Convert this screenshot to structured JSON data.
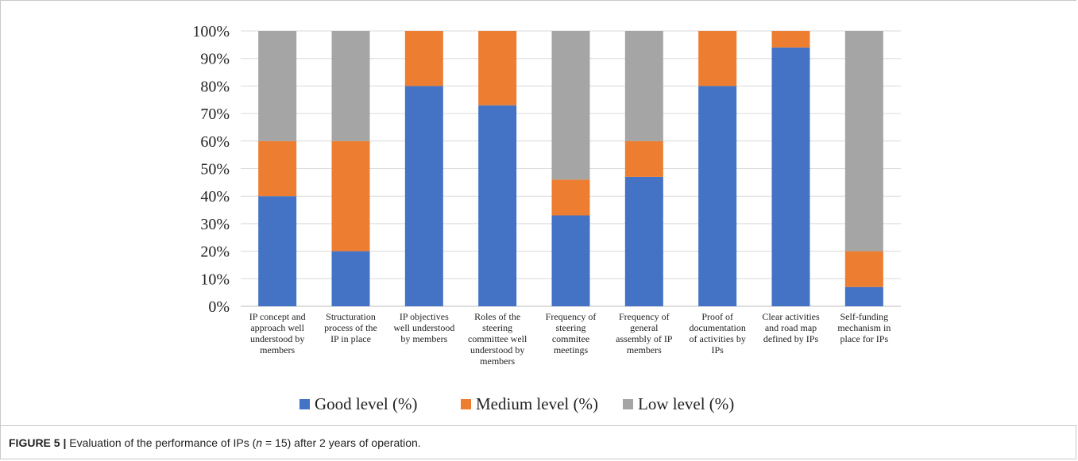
{
  "caption": {
    "label": "FIGURE 5 |",
    "text_before": " Evaluation of the performance of IPs (",
    "n_symbol": "n",
    "text_after": " = 15) after 2 years of operation."
  },
  "chart_data": {
    "type": "bar",
    "stacked": true,
    "title": "",
    "xlabel": "",
    "ylabel": "",
    "ylim": [
      0,
      100
    ],
    "yticks": [
      "0%",
      "10%",
      "20%",
      "30%",
      "40%",
      "50%",
      "60%",
      "70%",
      "80%",
      "90%",
      "100%"
    ],
    "grid": true,
    "legend_position": "bottom",
    "categories": [
      [
        "IP concept and",
        "approach well",
        "understood by",
        "members"
      ],
      [
        "Structuration",
        "process of the",
        "IP in place"
      ],
      [
        "IP objectives",
        "well understood",
        "by members"
      ],
      [
        "Roles of the",
        "steering",
        "committee well",
        "understood by",
        "members"
      ],
      [
        "Frequency of",
        "steering",
        "commitee",
        "meetings"
      ],
      [
        "Frequency of",
        "general",
        "assembly of IP",
        "members"
      ],
      [
        "Proof of",
        "documentation",
        "of activities by",
        "IPs"
      ],
      [
        "Clear activities",
        "and road map",
        "defined by IPs"
      ],
      [
        "Self-funding",
        "mechanism in",
        "place for IPs"
      ]
    ],
    "series": [
      {
        "name": "Good level (%)",
        "color": "#4472c4",
        "values": [
          40,
          20,
          80,
          73,
          33,
          47,
          80,
          94,
          7
        ]
      },
      {
        "name": "Medium level (%)",
        "color": "#ed7d31",
        "values": [
          20,
          40,
          20,
          27,
          13,
          13,
          20,
          6,
          13
        ]
      },
      {
        "name": "Low level (%)",
        "color": "#a5a5a5",
        "values": [
          40,
          40,
          0,
          0,
          54,
          40,
          0,
          0,
          80
        ]
      }
    ]
  }
}
